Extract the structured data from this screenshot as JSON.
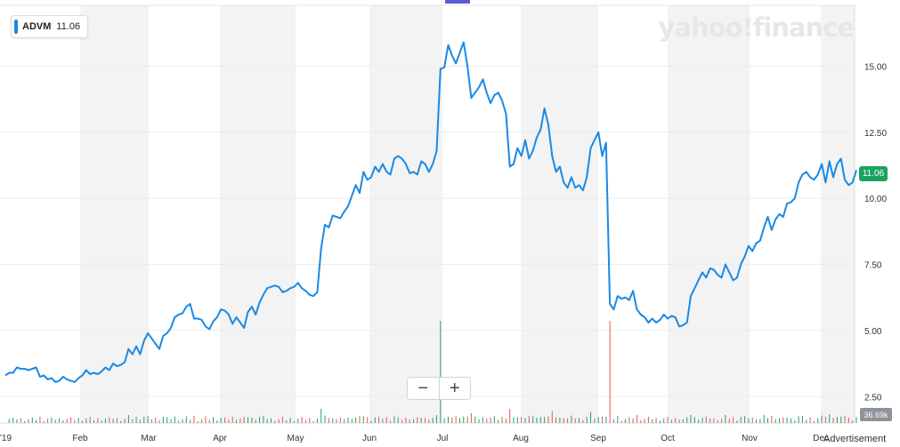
{
  "header": {
    "ticker": "ADVM",
    "last_price": "11.06",
    "brand": "yahoo!finance"
  },
  "controls": {
    "zoom_out": "−",
    "zoom_in": "+"
  },
  "badges": {
    "price": "11.06",
    "volume": "36.69k"
  },
  "footer": {
    "advertisement": "Advertisement"
  },
  "colors": {
    "line": "#1a8ae5",
    "price_badge": "#1aa260",
    "volume_up": "#2aa06a",
    "volume_down": "#e05a5a",
    "band": "#f3f3f3"
  },
  "chart_data": {
    "type": "line",
    "ticker": "ADVM",
    "x_tick_labels": [
      "'19",
      "Feb",
      "Mar",
      "Apr",
      "May",
      "Jun",
      "Jul",
      "Aug",
      "Sep",
      "Oct",
      "Nov",
      "Dec"
    ],
    "y_tick_labels": [
      "2.50",
      "5.00",
      "7.50",
      "10.00",
      "12.50",
      "15.00"
    ],
    "y_ticks": [
      2.5,
      5.0,
      7.5,
      10.0,
      12.5,
      15.0
    ],
    "ylim": [
      1.5,
      17.3
    ],
    "grid": true,
    "series": [
      {
        "values": [
          3.3,
          3.4,
          3.4,
          3.6,
          3.55,
          3.55,
          3.5,
          3.55,
          3.6,
          3.25,
          3.3,
          3.15,
          3.2,
          3.05,
          3.1,
          3.25,
          3.15,
          3.1,
          3.05,
          3.2,
          3.3,
          3.5,
          3.35,
          3.4,
          3.35,
          3.45,
          3.6,
          3.5,
          3.75,
          3.65,
          3.7,
          3.8,
          4.3,
          4.1,
          4.4,
          4.1,
          4.6,
          4.9,
          4.7,
          4.5,
          4.3,
          4.8,
          4.9,
          5.1,
          5.5,
          5.6,
          5.65,
          5.9,
          6.0,
          5.45,
          5.45,
          5.4,
          5.15,
          5.05,
          5.35,
          5.5,
          5.8,
          5.75,
          5.6,
          5.25,
          5.5,
          5.3,
          5.1,
          5.7,
          5.9,
          5.6,
          6.05,
          6.35,
          6.6,
          6.65,
          6.7,
          6.65,
          6.45,
          6.5,
          6.6,
          6.65,
          6.8,
          6.6,
          6.5,
          6.35,
          6.3,
          6.45,
          8.1,
          9.0,
          8.9,
          9.35,
          9.3,
          9.25,
          9.5,
          9.7,
          10.1,
          10.5,
          10.2,
          11.0,
          10.7,
          10.8,
          11.2,
          11.0,
          11.3,
          11.0,
          10.9,
          11.5,
          11.6,
          11.5,
          11.3,
          10.95,
          11.0,
          10.9,
          11.4,
          11.3,
          11.0,
          11.3,
          11.8,
          14.9,
          14.95,
          15.8,
          15.4,
          15.1,
          15.5,
          15.9,
          15.0,
          13.8,
          14.0,
          14.2,
          14.5,
          14.0,
          13.6,
          13.9,
          14.0,
          13.7,
          13.2,
          11.2,
          11.3,
          11.9,
          11.6,
          12.2,
          11.5,
          11.8,
          12.3,
          12.6,
          13.4,
          12.8,
          11.6,
          11.0,
          11.2,
          10.6,
          10.4,
          10.8,
          10.4,
          10.5,
          10.3,
          10.8,
          11.9,
          12.2,
          12.5,
          11.6,
          12.1,
          6.0,
          5.8,
          6.3,
          6.2,
          6.25,
          6.15,
          6.5,
          5.8,
          5.6,
          5.5,
          5.3,
          5.45,
          5.3,
          5.4,
          5.6,
          5.45,
          5.55,
          5.5,
          5.15,
          5.2,
          5.3,
          6.3,
          6.6,
          6.9,
          7.2,
          7.0,
          7.35,
          7.3,
          7.1,
          7.0,
          7.5,
          7.2,
          6.9,
          7.0,
          7.5,
          7.8,
          8.2,
          8.0,
          8.3,
          8.4,
          8.9,
          9.3,
          8.8,
          9.2,
          9.4,
          9.3,
          9.8,
          9.85,
          10.0,
          10.6,
          10.9,
          11.0,
          10.8,
          10.7,
          10.9,
          11.3,
          10.6,
          11.4,
          10.8,
          11.3,
          11.5,
          10.7,
          10.5,
          10.6,
          11.06
        ]
      }
    ],
    "volume": {
      "label": "36.69k"
    }
  }
}
